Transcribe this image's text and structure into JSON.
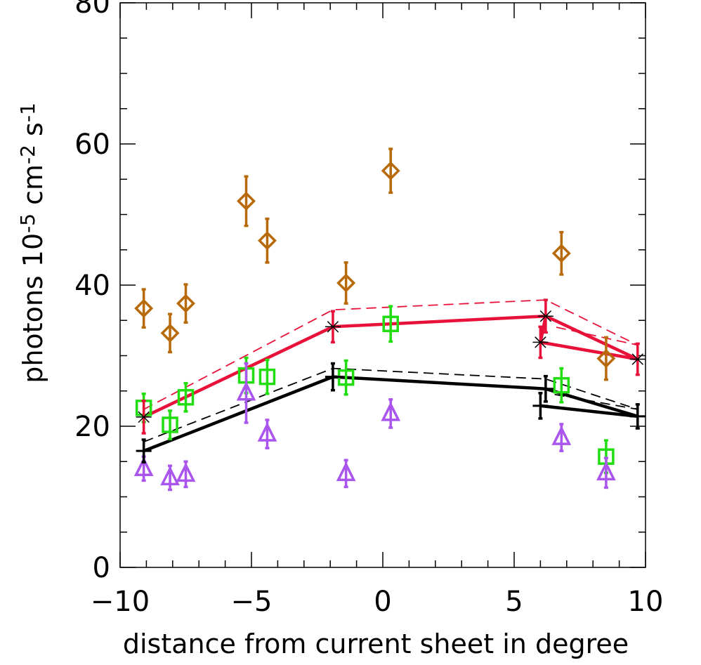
{
  "chart_data": {
    "type": "scatter",
    "title": "",
    "xlabel": "distance from current sheet in degree",
    "ylabel": "photons 10",
    "ylabel_parts": [
      {
        "text": "photons 10",
        "sup": false
      },
      {
        "text": "-5",
        "sup": true
      },
      {
        "text": " cm",
        "sup": false
      },
      {
        "text": "-2",
        "sup": true
      },
      {
        "text": " s",
        "sup": false
      },
      {
        "text": "-1",
        "sup": true
      }
    ],
    "xlim": [
      -10,
      10
    ],
    "ylim": [
      0,
      80
    ],
    "x_ticks": [
      {
        "value": -10,
        "label": "−10"
      },
      {
        "value": -5,
        "label": "−5"
      },
      {
        "value": 0,
        "label": "0"
      },
      {
        "value": 5,
        "label": "5"
      },
      {
        "value": 10,
        "label": "10"
      }
    ],
    "y_ticks": [
      {
        "value": 0,
        "label": "0"
      },
      {
        "value": 20,
        "label": "20"
      },
      {
        "value": 40,
        "label": "40"
      },
      {
        "value": 60,
        "label": "60"
      },
      {
        "value": 80,
        "label": "80"
      }
    ],
    "grid": false,
    "series": [
      {
        "marker": "diamond",
        "color": "#b8690a",
        "points": [
          {
            "x": -9.1,
            "y": 36.7,
            "err": 2.7
          },
          {
            "x": -8.1,
            "y": 33.2,
            "err": 2.7
          },
          {
            "x": -7.5,
            "y": 37.4,
            "err": 2.7
          },
          {
            "x": -5.2,
            "y": 51.9,
            "err": 3.5
          },
          {
            "x": -4.4,
            "y": 46.3,
            "err": 3.1
          },
          {
            "x": -1.4,
            "y": 40.3,
            "err": 2.9
          },
          {
            "x": 0.3,
            "y": 56.2,
            "err": 3.1
          },
          {
            "x": 6.8,
            "y": 44.5,
            "err": 3.0
          },
          {
            "x": 8.5,
            "y": 29.6,
            "err": 3.0
          }
        ]
      },
      {
        "marker": "square",
        "color": "#22dd11",
        "points": [
          {
            "x": -9.1,
            "y": 22.6,
            "err": 2.0
          },
          {
            "x": -8.1,
            "y": 20.2,
            "err": 2.0
          },
          {
            "x": -7.5,
            "y": 24.1,
            "err": 2.0
          },
          {
            "x": -5.2,
            "y": 27.2,
            "err": 2.5
          },
          {
            "x": -4.4,
            "y": 27.0,
            "err": 2.4
          },
          {
            "x": -1.4,
            "y": 26.9,
            "err": 2.4
          },
          {
            "x": 0.3,
            "y": 34.5,
            "err": 2.5
          },
          {
            "x": 6.8,
            "y": 25.8,
            "err": 2.4
          },
          {
            "x": 8.5,
            "y": 15.7,
            "err": 2.3
          }
        ]
      },
      {
        "marker": "triangle",
        "color": "#aa55ee",
        "points": [
          {
            "x": -9.1,
            "y": 14.0,
            "err": 1.7
          },
          {
            "x": -8.1,
            "y": 12.7,
            "err": 1.7
          },
          {
            "x": -7.5,
            "y": 13.2,
            "err": 1.8
          },
          {
            "x": -5.2,
            "y": 24.7,
            "err": 4.2
          },
          {
            "x": -4.4,
            "y": 18.9,
            "err": 2.0
          },
          {
            "x": -1.4,
            "y": 13.3,
            "err": 1.9
          },
          {
            "x": 0.3,
            "y": 21.8,
            "err": 2.0
          },
          {
            "x": 6.8,
            "y": 18.4,
            "err": 1.9
          },
          {
            "x": 8.5,
            "y": 13.4,
            "err": 2.1
          }
        ]
      },
      {
        "marker": "asterisk",
        "color": "#e8113a",
        "line": "solid",
        "line_color": "#e8113a",
        "points": [
          {
            "x": -9.1,
            "y": 21.3,
            "err": 2.3
          },
          {
            "x": -1.9,
            "y": 34.1,
            "err": 2.2
          },
          {
            "x": 6.2,
            "y": 35.6,
            "err": 2.3
          },
          {
            "x": 6.0,
            "y": 31.9,
            "err": 2.2
          },
          {
            "x": 9.7,
            "y": 29.5,
            "err": 2.2
          }
        ],
        "line_points": [
          {
            "x": -9.1,
            "y": 21.3
          },
          {
            "x": -1.9,
            "y": 34.1
          },
          {
            "x": 6.2,
            "y": 35.6
          },
          {
            "x": 6.0,
            "y": 31.9
          },
          {
            "x": 9.7,
            "y": 29.5
          },
          {
            "x": 6.2,
            "y": 35.6
          }
        ]
      },
      {
        "marker": "plus",
        "color": "#000000",
        "line": "solid",
        "line_color": "#000000",
        "points": [
          {
            "x": -9.1,
            "y": 16.5,
            "err": 1.6
          },
          {
            "x": -1.9,
            "y": 27.0,
            "err": 1.9
          },
          {
            "x": 6.2,
            "y": 25.3,
            "err": 1.8
          },
          {
            "x": 6.0,
            "y": 22.9,
            "err": 1.8
          },
          {
            "x": 9.7,
            "y": 21.4,
            "err": 1.7
          }
        ],
        "line_points": [
          {
            "x": -9.1,
            "y": 16.5
          },
          {
            "x": -1.9,
            "y": 27.0
          },
          {
            "x": 6.2,
            "y": 25.3
          },
          {
            "x": 9.7,
            "y": 21.4
          },
          {
            "x": 6.0,
            "y": 22.9
          }
        ]
      },
      {
        "marker": "none",
        "line": "dashed",
        "line_color": "#e8113a",
        "points": [],
        "line_points": [
          {
            "x": -9.1,
            "y": 22.4
          },
          {
            "x": -1.9,
            "y": 36.5
          },
          {
            "x": 6.2,
            "y": 37.9
          },
          {
            "x": 9.7,
            "y": 31.5
          },
          {
            "x": 6.4,
            "y": 34.2
          }
        ]
      },
      {
        "marker": "none",
        "line": "dashed",
        "line_color": "#000000",
        "points": [],
        "line_points": [
          {
            "x": -9.1,
            "y": 17.8
          },
          {
            "x": -1.9,
            "y": 28.2
          },
          {
            "x": 6.2,
            "y": 26.7
          },
          {
            "x": 9.7,
            "y": 22.4
          },
          {
            "x": 6.4,
            "y": 24.6
          }
        ]
      }
    ]
  }
}
